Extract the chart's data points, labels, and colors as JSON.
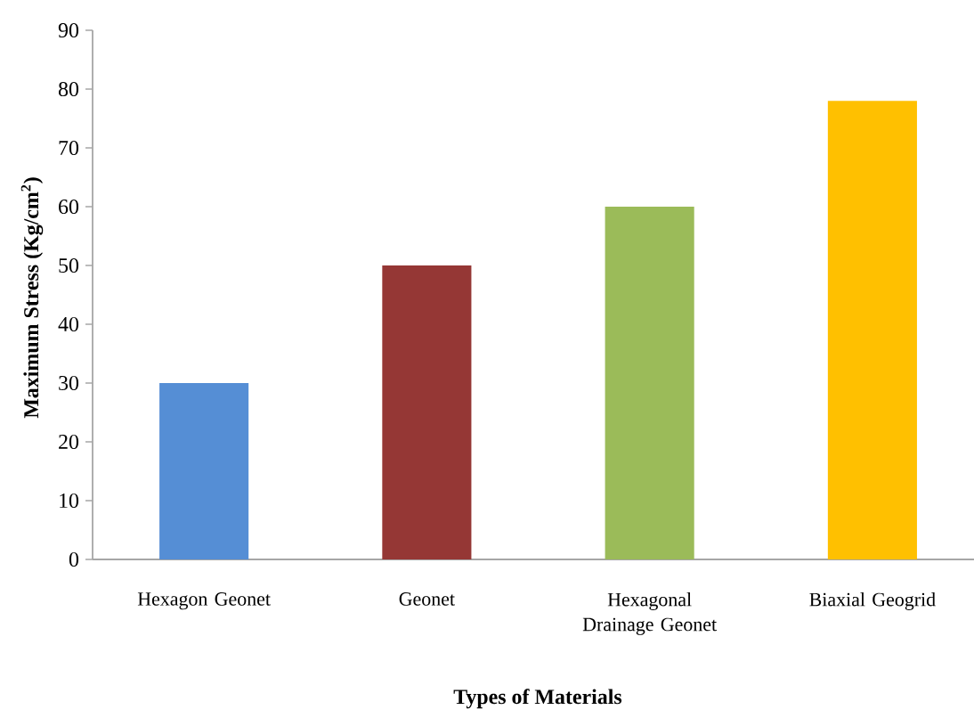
{
  "chart_data": {
    "type": "bar",
    "xlabel": "Types of Materials",
    "ylabel": "Maximum Stress (Kg/cm$^{2}$)",
    "categories": [
      "Hexagon Geonet",
      "Geonet",
      "Hexagonal Drainage Geonet",
      "Biaxial Geogrid"
    ],
    "values": [
      30,
      50,
      60,
      78
    ],
    "colors": [
      "#558ed5",
      "#953735",
      "#9bbb59",
      "#ffc000"
    ],
    "ylim": [
      0,
      90
    ],
    "yticks": [
      0,
      10,
      20,
      30,
      40,
      50,
      60,
      70,
      80,
      90
    ]
  }
}
